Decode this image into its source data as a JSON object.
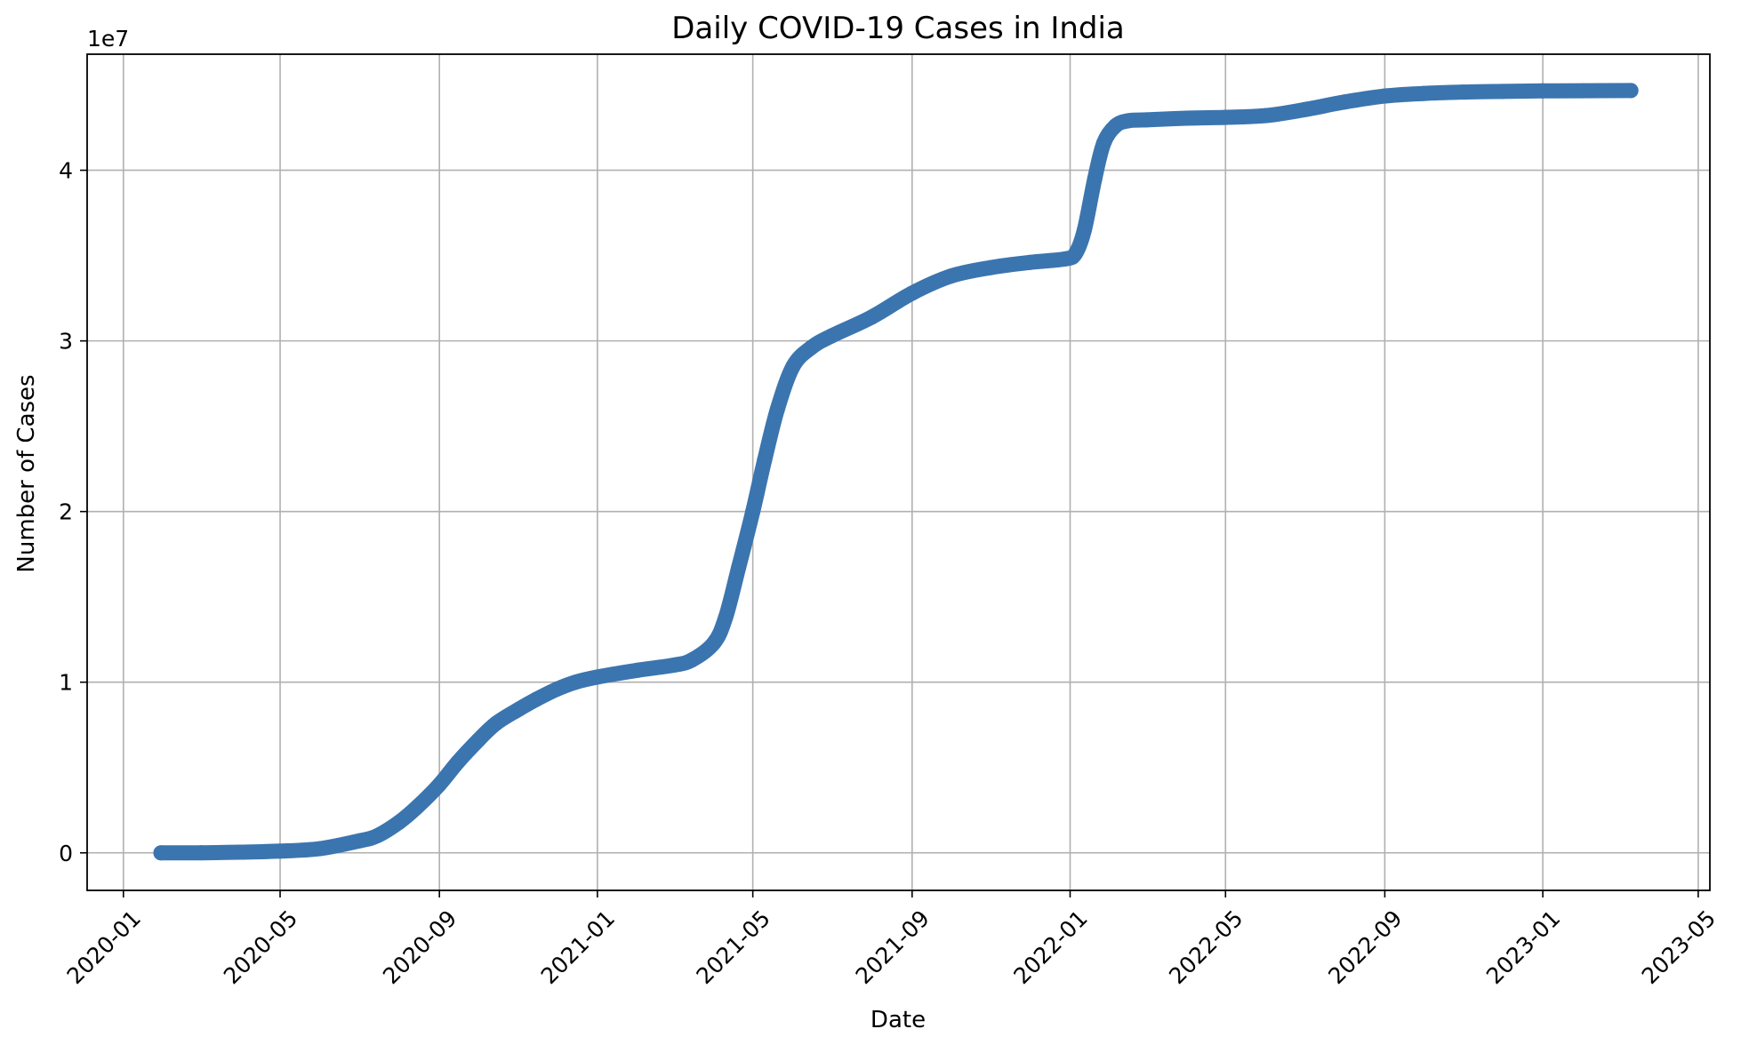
{
  "chart_data": {
    "type": "line",
    "title": "Daily COVID-19 Cases in India",
    "xlabel": "Date",
    "ylabel": "Number of Cases",
    "y_scale_label": "1e7",
    "grid": true,
    "xlim": [
      "2019-12-04",
      "2023-05-10"
    ],
    "ylim": [
      -2200000,
      46800000
    ],
    "x_ticks": [
      "2020-01",
      "2020-05",
      "2020-09",
      "2021-01",
      "2021-05",
      "2021-09",
      "2022-01",
      "2022-05",
      "2022-09",
      "2023-01",
      "2023-05"
    ],
    "y_ticks": [
      {
        "value": 0,
        "label": "0"
      },
      {
        "value": 10000000,
        "label": "1"
      },
      {
        "value": 20000000,
        "label": "2"
      },
      {
        "value": 30000000,
        "label": "3"
      },
      {
        "value": 40000000,
        "label": "4"
      }
    ],
    "series_color": "#3b75af",
    "series": [
      {
        "x": [
          "2020-01-30",
          "2020-03-01",
          "2020-04-01",
          "2020-05-01",
          "2020-06-01",
          "2020-07-01",
          "2020-07-15",
          "2020-08-01",
          "2020-08-15",
          "2020-09-01",
          "2020-09-15",
          "2020-10-01",
          "2020-10-15",
          "2020-11-01",
          "2020-11-15",
          "2020-12-01",
          "2020-12-15",
          "2021-01-01",
          "2021-02-01",
          "2021-03-01",
          "2021-03-15",
          "2021-04-01",
          "2021-04-10",
          "2021-04-20",
          "2021-05-01",
          "2021-05-10",
          "2021-05-20",
          "2021-06-01",
          "2021-06-15",
          "2021-07-01",
          "2021-08-01",
          "2021-09-01",
          "2021-10-01",
          "2021-11-01",
          "2021-12-01",
          "2021-12-28",
          "2022-01-05",
          "2022-01-12",
          "2022-01-20",
          "2022-01-27",
          "2022-02-05",
          "2022-02-15",
          "2022-03-01",
          "2022-04-01",
          "2022-05-01",
          "2022-06-01",
          "2022-07-01",
          "2022-08-01",
          "2022-09-01",
          "2022-10-01",
          "2022-11-01",
          "2022-12-01",
          "2023-01-01",
          "2023-02-01",
          "2023-03-10"
        ],
        "values": [
          0,
          5000,
          40000,
          100000,
          250000,
          700000,
          1000000,
          1800000,
          2700000,
          4000000,
          5300000,
          6600000,
          7600000,
          8400000,
          9000000,
          9600000,
          10000000,
          10300000,
          10700000,
          11000000,
          11300000,
          12300000,
          13800000,
          16700000,
          20000000,
          23000000,
          26000000,
          28500000,
          29600000,
          30300000,
          31400000,
          32800000,
          33800000,
          34300000,
          34600000,
          34800000,
          35100000,
          36500000,
          39500000,
          41600000,
          42600000,
          42900000,
          42950000,
          43050000,
          43100000,
          43200000,
          43550000,
          44000000,
          44350000,
          44500000,
          44580000,
          44620000,
          44650000,
          44660000,
          44670000
        ]
      }
    ]
  }
}
